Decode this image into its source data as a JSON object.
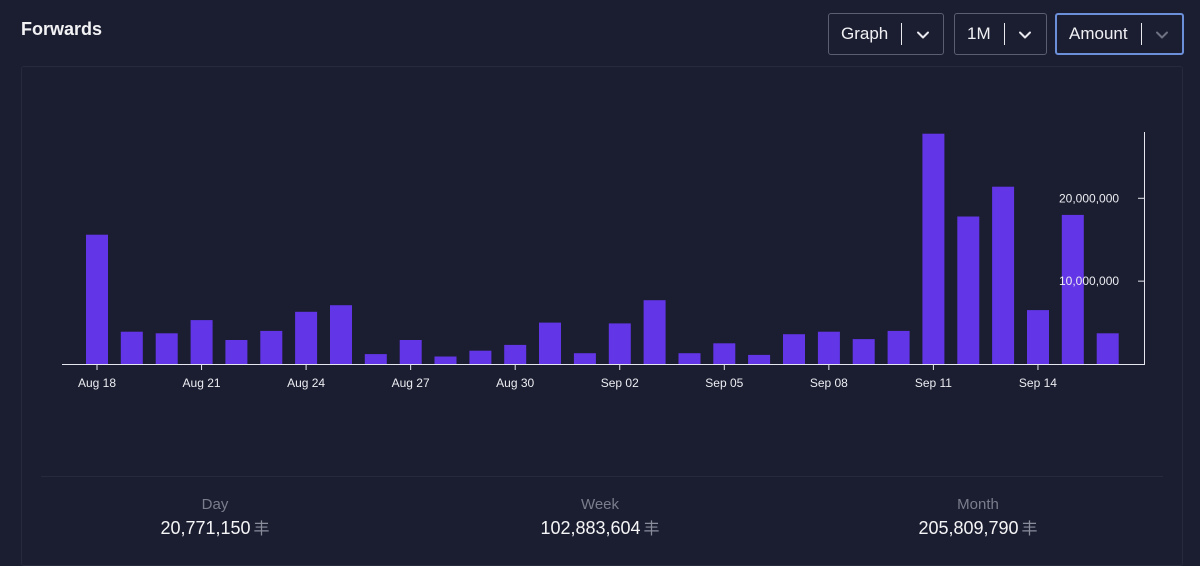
{
  "header": {
    "title": "Forwards"
  },
  "controls": {
    "view": {
      "value": "Graph"
    },
    "range": {
      "value": "1M"
    },
    "metric": {
      "value": "Amount"
    }
  },
  "colors": {
    "bar": "#6236e6",
    "axis": "#e6e6ee",
    "background": "#1b1e30"
  },
  "chart_data": {
    "type": "bar",
    "title": "",
    "xlabel": "",
    "ylabel": "",
    "categories": [
      "Aug 18",
      "Aug 19",
      "Aug 20",
      "Aug 21",
      "Aug 22",
      "Aug 23",
      "Aug 24",
      "Aug 25",
      "Aug 26",
      "Aug 27",
      "Aug 28",
      "Aug 29",
      "Aug 30",
      "Aug 31",
      "Sep 01",
      "Sep 02",
      "Sep 03",
      "Sep 04",
      "Sep 05",
      "Sep 06",
      "Sep 07",
      "Sep 08",
      "Sep 09",
      "Sep 10",
      "Sep 11",
      "Sep 12",
      "Sep 13",
      "Sep 14",
      "Sep 15",
      "Sep 16"
    ],
    "values": [
      15600000,
      3900000,
      3700000,
      5300000,
      2900000,
      4000000,
      6300000,
      7100000,
      1200000,
      2900000,
      900000,
      1600000,
      2300000,
      5000000,
      1300000,
      4900000,
      7700000,
      1300000,
      2500000,
      1100000,
      3600000,
      3900000,
      3000000,
      4000000,
      27800000,
      17800000,
      21400000,
      6500000,
      18000000,
      3700000
    ],
    "x_tick_labels": [
      "Aug 18",
      "Aug 21",
      "Aug 24",
      "Aug 27",
      "Aug 30",
      "Sep 02",
      "Sep 05",
      "Sep 08",
      "Sep 11",
      "Sep 14"
    ],
    "y_tick_labels": [
      "10,000,000",
      "20,000,000"
    ],
    "y_ticks": [
      10000000,
      20000000
    ],
    "ylim": [
      0,
      28000000
    ],
    "y_axis_side": "right",
    "grid": false,
    "legend": "none"
  },
  "summary": {
    "day": {
      "label": "Day",
      "value": "20,771,150",
      "unit": "丰"
    },
    "week": {
      "label": "Week",
      "value": "102,883,604",
      "unit": "丰"
    },
    "month": {
      "label": "Month",
      "value": "205,809,790",
      "unit": "丰"
    }
  }
}
